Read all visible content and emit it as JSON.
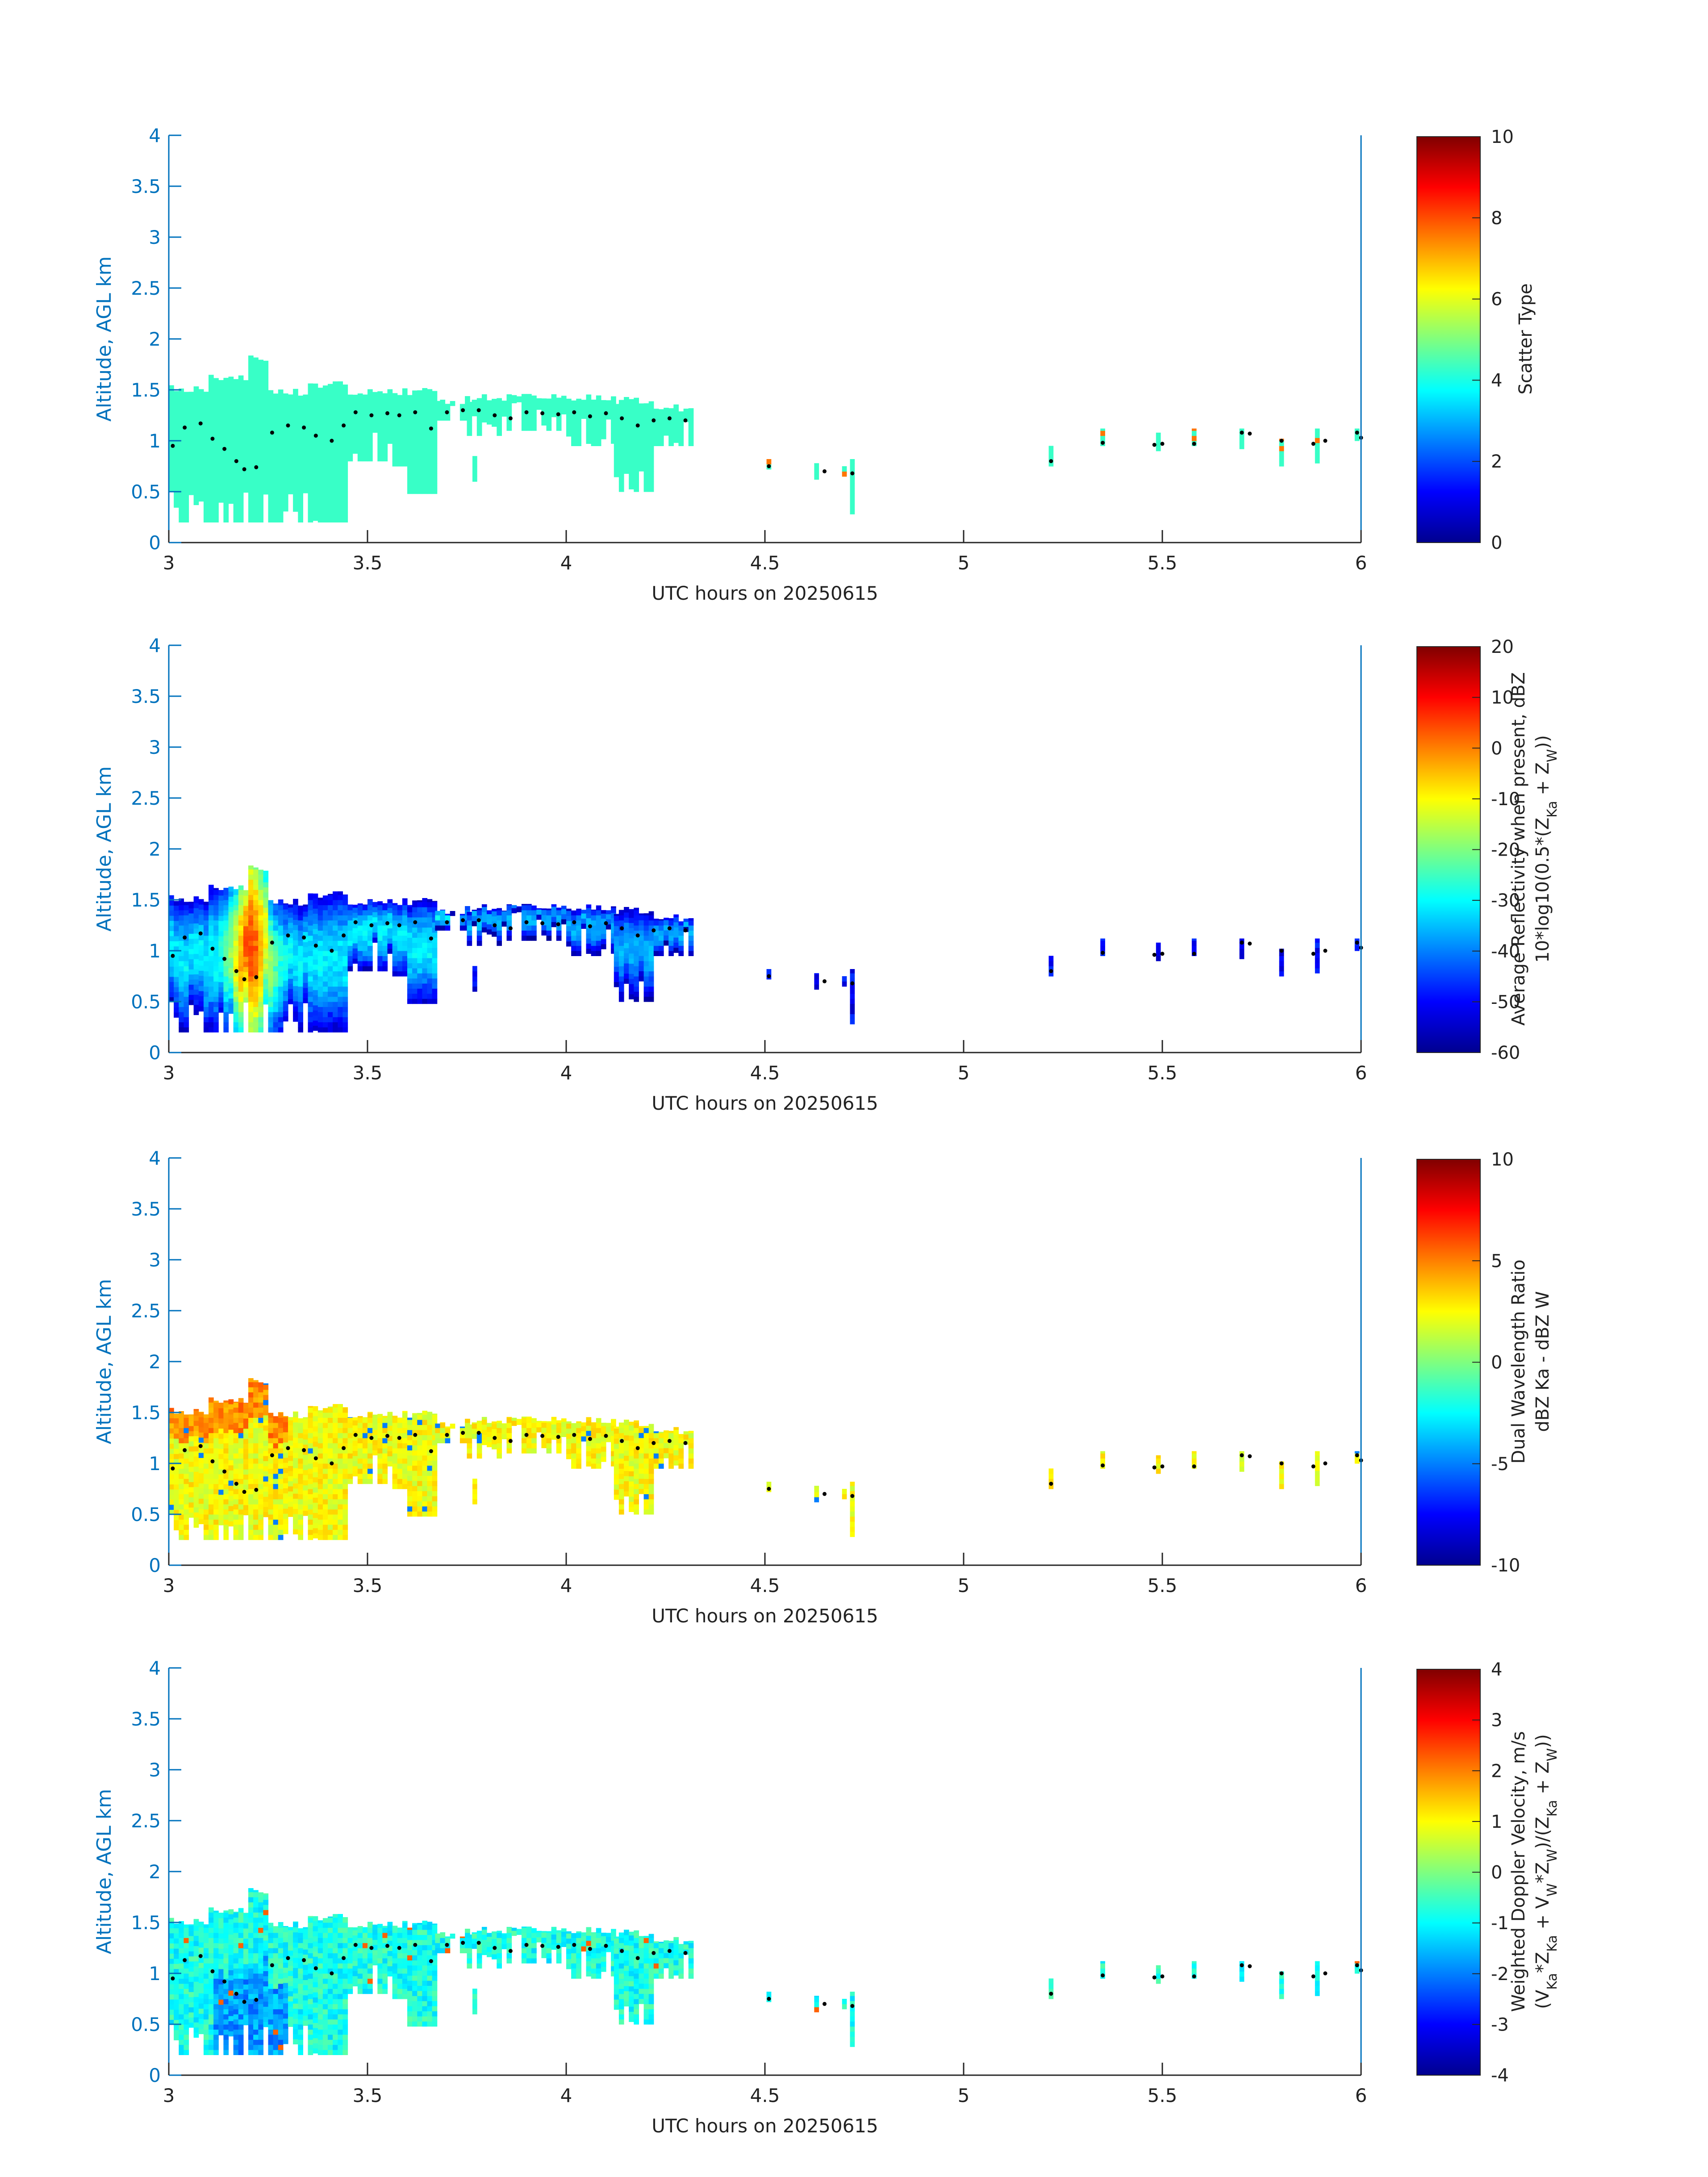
{
  "chart_data": [
    {
      "type": "heatmap",
      "title": "",
      "xlabel": "UTC hours on 20250615",
      "ylabel": "Altitude, AGL km",
      "xlim": [
        3,
        6
      ],
      "ylim": [
        0,
        4
      ],
      "xticks": [
        "3",
        "3.5",
        "4",
        "4.5",
        "5",
        "5.5",
        "6"
      ],
      "yticks": [
        "0",
        "0.5",
        "1",
        "1.5",
        "2",
        "2.5",
        "3",
        "3.5",
        "4"
      ],
      "colorbar": {
        "label_lines": [
          "Scatter Type"
        ],
        "range": [
          0,
          10
        ],
        "ticks": [
          "0",
          "2",
          "4",
          "6",
          "8",
          "10"
        ],
        "colormap": "jet"
      },
      "field": "scatter_type",
      "grid": false
    },
    {
      "type": "heatmap",
      "title": "",
      "xlabel": "UTC hours on 20250615",
      "ylabel": "Altitude, AGL km",
      "xlim": [
        3,
        6
      ],
      "ylim": [
        0,
        4
      ],
      "xticks": [
        "3",
        "3.5",
        "4",
        "4.5",
        "5",
        "5.5",
        "6"
      ],
      "yticks": [
        "0",
        "0.5",
        "1",
        "1.5",
        "2",
        "2.5",
        "3",
        "3.5",
        "4"
      ],
      "colorbar": {
        "label_lines": [
          "Average Reflectivity when present, dBZ",
          "10*log10(0.5*(Z_Ka + Z_W))"
        ],
        "range": [
          -60,
          20
        ],
        "ticks": [
          "-60",
          "-50",
          "-40",
          "-30",
          "-20",
          "-10",
          "0",
          "10",
          "20"
        ],
        "colormap": "jet"
      },
      "field": "reflectivity",
      "grid": false
    },
    {
      "type": "heatmap",
      "title": "",
      "xlabel": "UTC hours on 20250615",
      "ylabel": "Altitude, AGL km",
      "xlim": [
        3,
        6
      ],
      "ylim": [
        0,
        4
      ],
      "xticks": [
        "3",
        "3.5",
        "4",
        "4.5",
        "5",
        "5.5",
        "6"
      ],
      "yticks": [
        "0",
        "0.5",
        "1",
        "1.5",
        "2",
        "2.5",
        "3",
        "3.5",
        "4"
      ],
      "colorbar": {
        "label_lines": [
          "Dual Wavelength Ratio",
          "dBZ Ka - dBZ W"
        ],
        "range": [
          -10,
          10
        ],
        "ticks": [
          "-10",
          "-5",
          "0",
          "5",
          "10"
        ],
        "colormap": "jet"
      },
      "field": "dwr",
      "grid": false
    },
    {
      "type": "heatmap",
      "title": "",
      "xlabel": "UTC hours on 20250615",
      "ylabel": "Altitude, AGL km",
      "xlim": [
        3,
        6
      ],
      "ylim": [
        0,
        4
      ],
      "xticks": [
        "3",
        "3.5",
        "4",
        "4.5",
        "5",
        "5.5",
        "6"
      ],
      "yticks": [
        "0",
        "0.5",
        "1",
        "1.5",
        "2",
        "2.5",
        "3",
        "3.5",
        "4"
      ],
      "colorbar": {
        "label_lines": [
          "Weighted Doppler Velocity, m/s",
          "(V_Ka*Z_Ka + V_W*Z_W)/(Z_Ka + Z_W))"
        ],
        "range": [
          -4,
          4
        ],
        "ticks": [
          "-4",
          "-3",
          "-2",
          "-1",
          "0",
          "1",
          "2",
          "3",
          "4"
        ],
        "colormap": "jet"
      },
      "field": "doppler",
      "grid": false
    }
  ],
  "cloud": {
    "main_segments": [
      {
        "x_start": 3.0,
        "x_end": 3.1,
        "top": 1.52,
        "base": 0.2
      },
      {
        "x_start": 3.1,
        "x_end": 3.2,
        "top": 1.62,
        "base": 0.2
      },
      {
        "x_start": 3.2,
        "x_end": 3.25,
        "top": 1.82,
        "base": 0.2
      },
      {
        "x_start": 3.25,
        "x_end": 3.35,
        "top": 1.48,
        "base": 0.2
      },
      {
        "x_start": 3.35,
        "x_end": 3.45,
        "top": 1.55,
        "base": 0.2
      },
      {
        "x_start": 3.45,
        "x_end": 3.55,
        "top": 1.48,
        "base": 0.8
      },
      {
        "x_start": 3.55,
        "x_end": 3.6,
        "top": 1.48,
        "base": 0.75
      },
      {
        "x_start": 3.6,
        "x_end": 3.67,
        "top": 1.48,
        "base": 0.48
      },
      {
        "x_start": 3.67,
        "x_end": 3.75,
        "top": 1.4,
        "base": 1.2
      },
      {
        "x_start": 3.75,
        "x_end": 3.85,
        "top": 1.42,
        "base": 1.05
      },
      {
        "x_start": 3.85,
        "x_end": 4.0,
        "top": 1.42,
        "base": 1.1
      },
      {
        "x_start": 4.0,
        "x_end": 4.12,
        "top": 1.42,
        "base": 0.95
      },
      {
        "x_start": 4.12,
        "x_end": 4.22,
        "top": 1.4,
        "base": 0.5
      },
      {
        "x_start": 4.22,
        "x_end": 4.31,
        "top": 1.32,
        "base": 0.95
      }
    ],
    "small_patches": [
      {
        "x": 3.77,
        "top": 0.85,
        "base": 0.6
      },
      {
        "x": 4.51,
        "top": 0.82,
        "base": 0.72
      },
      {
        "x": 4.63,
        "top": 0.78,
        "base": 0.62
      },
      {
        "x": 4.7,
        "top": 0.75,
        "base": 0.65
      },
      {
        "x": 4.72,
        "top": 0.82,
        "base": 0.28
      },
      {
        "x": 5.22,
        "top": 0.95,
        "base": 0.75
      },
      {
        "x": 5.35,
        "top": 1.12,
        "base": 0.95
      },
      {
        "x": 5.49,
        "top": 1.08,
        "base": 0.9
      },
      {
        "x": 5.58,
        "top": 1.12,
        "base": 0.95
      },
      {
        "x": 5.7,
        "top": 1.12,
        "base": 0.92
      },
      {
        "x": 5.8,
        "top": 1.02,
        "base": 0.75
      },
      {
        "x": 5.89,
        "top": 1.12,
        "base": 0.78
      },
      {
        "x": 5.99,
        "top": 1.12,
        "base": 1.0
      }
    ],
    "base_dots": [
      [
        3.01,
        0.95
      ],
      [
        3.04,
        1.13
      ],
      [
        3.08,
        1.17
      ],
      [
        3.11,
        1.02
      ],
      [
        3.14,
        0.92
      ],
      [
        3.17,
        0.8
      ],
      [
        3.19,
        0.72
      ],
      [
        3.22,
        0.74
      ],
      [
        3.26,
        1.08
      ],
      [
        3.3,
        1.15
      ],
      [
        3.34,
        1.13
      ],
      [
        3.37,
        1.05
      ],
      [
        3.41,
        1.0
      ],
      [
        3.44,
        1.15
      ],
      [
        3.47,
        1.28
      ],
      [
        3.51,
        1.25
      ],
      [
        3.55,
        1.27
      ],
      [
        3.58,
        1.25
      ],
      [
        3.62,
        1.28
      ],
      [
        3.66,
        1.12
      ],
      [
        3.7,
        1.28
      ],
      [
        3.74,
        1.3
      ],
      [
        3.78,
        1.3
      ],
      [
        3.82,
        1.25
      ],
      [
        3.86,
        1.22
      ],
      [
        3.9,
        1.28
      ],
      [
        3.94,
        1.27
      ],
      [
        3.98,
        1.26
      ],
      [
        4.02,
        1.28
      ],
      [
        4.06,
        1.24
      ],
      [
        4.1,
        1.27
      ],
      [
        4.14,
        1.22
      ],
      [
        4.18,
        1.15
      ],
      [
        4.22,
        1.2
      ],
      [
        4.26,
        1.22
      ],
      [
        4.3,
        1.2
      ],
      [
        4.51,
        0.75
      ],
      [
        4.65,
        0.7
      ],
      [
        4.72,
        0.68
      ],
      [
        5.22,
        0.8
      ],
      [
        5.35,
        0.98
      ],
      [
        5.48,
        0.96
      ],
      [
        5.5,
        0.97
      ],
      [
        5.58,
        0.97
      ],
      [
        5.7,
        1.08
      ],
      [
        5.72,
        1.07
      ],
      [
        5.8,
        1.0
      ],
      [
        5.88,
        0.97
      ],
      [
        5.91,
        1.0
      ],
      [
        5.99,
        1.08
      ],
      [
        6.0,
        1.03
      ]
    ]
  }
}
